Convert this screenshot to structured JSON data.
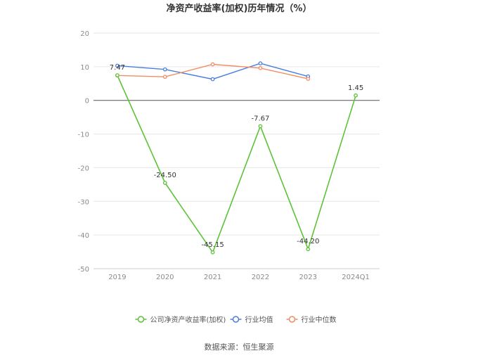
{
  "chart_data": {
    "type": "line",
    "title": "净资产收益率(加权)历年情况（%）",
    "categories": [
      "2019",
      "2020",
      "2021",
      "2022",
      "2023",
      "2024Q1"
    ],
    "ylim": [
      -50,
      20
    ],
    "yticks": [
      20,
      10,
      0,
      -10,
      -20,
      -30,
      -40,
      -50
    ],
    "grid": true,
    "legend_position": "bottom",
    "series": [
      {
        "name": "公司净资产收益率(加权)",
        "color": "#5cc336",
        "values": [
          7.47,
          -24.5,
          -45.15,
          -7.67,
          -44.2,
          1.45
        ],
        "labels": [
          "7.47",
          "-24.50",
          "-45.15",
          "-7.67",
          "-44.20",
          "1.45"
        ]
      },
      {
        "name": "行业均值",
        "color": "#4a7ee0",
        "values": [
          10.3,
          9.2,
          6.3,
          11.0,
          7.1,
          null
        ]
      },
      {
        "name": "行业中位数",
        "color": "#f28c62",
        "values": [
          7.4,
          7.0,
          10.7,
          9.6,
          6.4,
          null
        ]
      }
    ]
  },
  "source_text": "数据来源：恒生聚源"
}
